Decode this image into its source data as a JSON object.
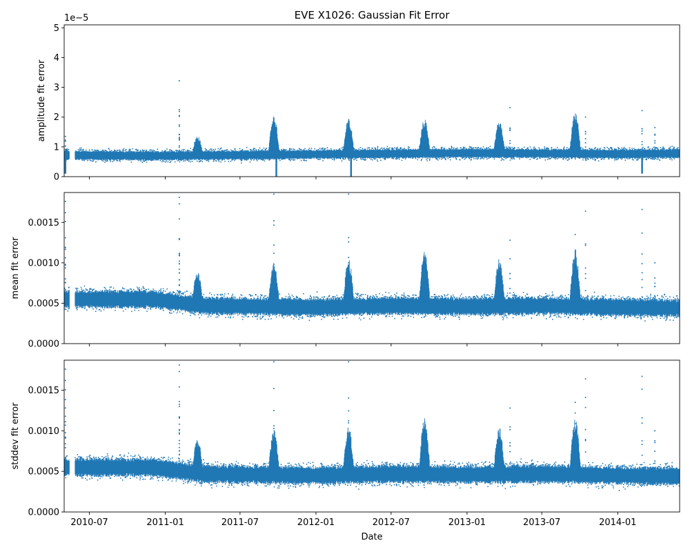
{
  "title": "EVE X1026: Gaussian Fit Error",
  "xlabel": "Date",
  "colors": {
    "series": "#1f77b4",
    "axis": "#000000",
    "background": "#ffffff"
  },
  "chart_data": {
    "type": "scatter",
    "title": "EVE X1026: Gaussian Fit Error",
    "xlabel": "Date",
    "x_ticks": [
      "2010-07",
      "2011-01",
      "2011-07",
      "2012-01",
      "2012-07",
      "2013-01",
      "2013-07",
      "2014-01"
    ],
    "x_tick_dates": [
      "2010-07-01",
      "2011-01-01",
      "2011-07-01",
      "2012-01-01",
      "2012-07-01",
      "2013-01-01",
      "2013-07-01",
      "2014-01-01"
    ],
    "xlim": [
      "2010-05-01",
      "2014-05-31"
    ],
    "grid": false,
    "legend": "none",
    "panels": [
      {
        "ylabel": "amplitude fit error",
        "ylim": [
          0,
          5.1e-05
        ],
        "ytick_values": [
          0,
          1e-05,
          2e-05,
          3e-05,
          4e-05,
          5e-05
        ],
        "yticks": [
          "0",
          "1",
          "2",
          "3",
          "4",
          "5"
        ],
        "offset_label": "1e−5",
        "baseline": [
          [
            "2010-05-01",
            7.2e-06
          ],
          [
            "2010-12-01",
            7e-06
          ],
          [
            "2011-06-01",
            7.2e-06
          ],
          [
            "2012-01-01",
            7.5e-06
          ],
          [
            "2012-07-01",
            7.7e-06
          ],
          [
            "2013-01-01",
            7.9e-06
          ],
          [
            "2013-07-01",
            7.8e-06
          ],
          [
            "2014-01-01",
            7.6e-06
          ],
          [
            "2014-05-31",
            7.8e-06
          ]
        ],
        "band_halfwidth": 1.3e-06,
        "gap": [
          "2010-05-14",
          "2010-05-27"
        ],
        "peaks": [
          {
            "date": "2011-03-20",
            "value": 1.3e-05
          },
          {
            "date": "2011-09-21",
            "value": 1.9e-05
          },
          {
            "date": "2012-03-20",
            "value": 1.8e-05
          },
          {
            "date": "2012-09-20",
            "value": 1.8e-05
          },
          {
            "date": "2013-03-20",
            "value": 1.75e-05
          },
          {
            "date": "2013-09-20",
            "value": 2e-05
          }
        ],
        "spikes": [
          {
            "date": "2011-02-04",
            "value": 3.22e-05
          },
          {
            "date": "2011-02-04",
            "value": 2.25e-05
          },
          {
            "date": "2013-04-15",
            "value": 2.32e-05
          },
          {
            "date": "2014-03-01",
            "value": 2.22e-05
          },
          {
            "date": "2010-05-04",
            "value": 1.35e-05
          },
          {
            "date": "2013-10-15",
            "value": 2e-05
          },
          {
            "date": "2014-04-01",
            "value": 1.65e-05
          }
        ],
        "dips": [
          {
            "date": "2011-09-27",
            "value": 0
          },
          {
            "date": "2012-03-26",
            "value": 0
          },
          {
            "date": "2014-03-01",
            "value": 1e-06
          },
          {
            "date": "2010-05-04",
            "value": 1e-06
          }
        ]
      },
      {
        "ylabel": "mean fit error",
        "ylim": [
          0,
          0.00187
        ],
        "ytick_values": [
          0,
          0.0005,
          0.001,
          0.0015
        ],
        "yticks": [
          "0.0000",
          "0.0005",
          "0.0010",
          "0.0015"
        ],
        "offset_label": "",
        "baseline": [
          [
            "2010-05-01",
            0.00055
          ],
          [
            "2010-12-01",
            0.00055
          ],
          [
            "2011-04-01",
            0.00047
          ],
          [
            "2012-01-01",
            0.00045
          ],
          [
            "2012-07-01",
            0.00047
          ],
          [
            "2013-01-01",
            0.00046
          ],
          [
            "2013-07-01",
            0.00047
          ],
          [
            "2014-01-01",
            0.00045
          ],
          [
            "2014-05-31",
            0.00044
          ]
        ],
        "band_halfwidth": 9e-05,
        "gap": [
          "2010-05-14",
          "2010-05-27"
        ],
        "peaks": [
          {
            "date": "2011-03-20",
            "value": 0.00085
          },
          {
            "date": "2011-09-21",
            "value": 0.00095
          },
          {
            "date": "2012-03-20",
            "value": 0.00098
          },
          {
            "date": "2012-09-20",
            "value": 0.00108
          },
          {
            "date": "2013-03-20",
            "value": 0.00098
          },
          {
            "date": "2013-09-20",
            "value": 0.00108
          }
        ],
        "spikes": [
          {
            "date": "2010-05-04",
            "value": 0.00176
          },
          {
            "date": "2010-05-04",
            "value": 0.00162
          },
          {
            "date": "2011-02-04",
            "value": 0.00181
          },
          {
            "date": "2011-02-04",
            "value": 0.00173
          },
          {
            "date": "2011-02-04",
            "value": 0.0013
          },
          {
            "date": "2011-09-21",
            "value": 0.00185
          },
          {
            "date": "2012-03-20",
            "value": 0.00185
          },
          {
            "date": "2013-04-15",
            "value": 0.00128
          },
          {
            "date": "2013-09-20",
            "value": 0.00135
          },
          {
            "date": "2013-10-15",
            "value": 0.00164
          },
          {
            "date": "2014-03-01",
            "value": 0.00166
          },
          {
            "date": "2014-04-01",
            "value": 0.001
          }
        ],
        "dips": []
      },
      {
        "ylabel": "stddev fit error",
        "ylim": [
          0,
          0.00187
        ],
        "ytick_values": [
          0,
          0.0005,
          0.001,
          0.0015
        ],
        "yticks": [
          "0.0000",
          "0.0005",
          "0.0010",
          "0.0015"
        ],
        "offset_label": "",
        "baseline": [
          [
            "2010-05-01",
            0.00055
          ],
          [
            "2010-12-01",
            0.00055
          ],
          [
            "2011-04-01",
            0.00047
          ],
          [
            "2012-01-01",
            0.00045
          ],
          [
            "2012-07-01",
            0.00047
          ],
          [
            "2013-01-01",
            0.00046
          ],
          [
            "2013-07-01",
            0.00047
          ],
          [
            "2014-01-01",
            0.00045
          ],
          [
            "2014-05-31",
            0.00044
          ]
        ],
        "band_halfwidth": 9e-05,
        "gap": [
          "2010-05-14",
          "2010-05-27"
        ],
        "peaks": [
          {
            "date": "2011-03-20",
            "value": 0.00085
          },
          {
            "date": "2011-09-21",
            "value": 0.00095
          },
          {
            "date": "2012-03-20",
            "value": 0.00098
          },
          {
            "date": "2012-09-20",
            "value": 0.00108
          },
          {
            "date": "2013-03-20",
            "value": 0.00098
          },
          {
            "date": "2013-09-20",
            "value": 0.00108
          }
        ],
        "spikes": [
          {
            "date": "2010-05-04",
            "value": 0.00176
          },
          {
            "date": "2010-05-04",
            "value": 0.00162
          },
          {
            "date": "2011-02-04",
            "value": 0.00181
          },
          {
            "date": "2011-02-04",
            "value": 0.00173
          },
          {
            "date": "2011-02-04",
            "value": 0.0013
          },
          {
            "date": "2011-09-21",
            "value": 0.00185
          },
          {
            "date": "2012-03-20",
            "value": 0.00185
          },
          {
            "date": "2013-04-15",
            "value": 0.00128
          },
          {
            "date": "2013-09-20",
            "value": 0.00135
          },
          {
            "date": "2013-10-15",
            "value": 0.00164
          },
          {
            "date": "2014-03-01",
            "value": 0.00167
          },
          {
            "date": "2014-04-01",
            "value": 0.001
          }
        ],
        "dips": []
      }
    ]
  }
}
